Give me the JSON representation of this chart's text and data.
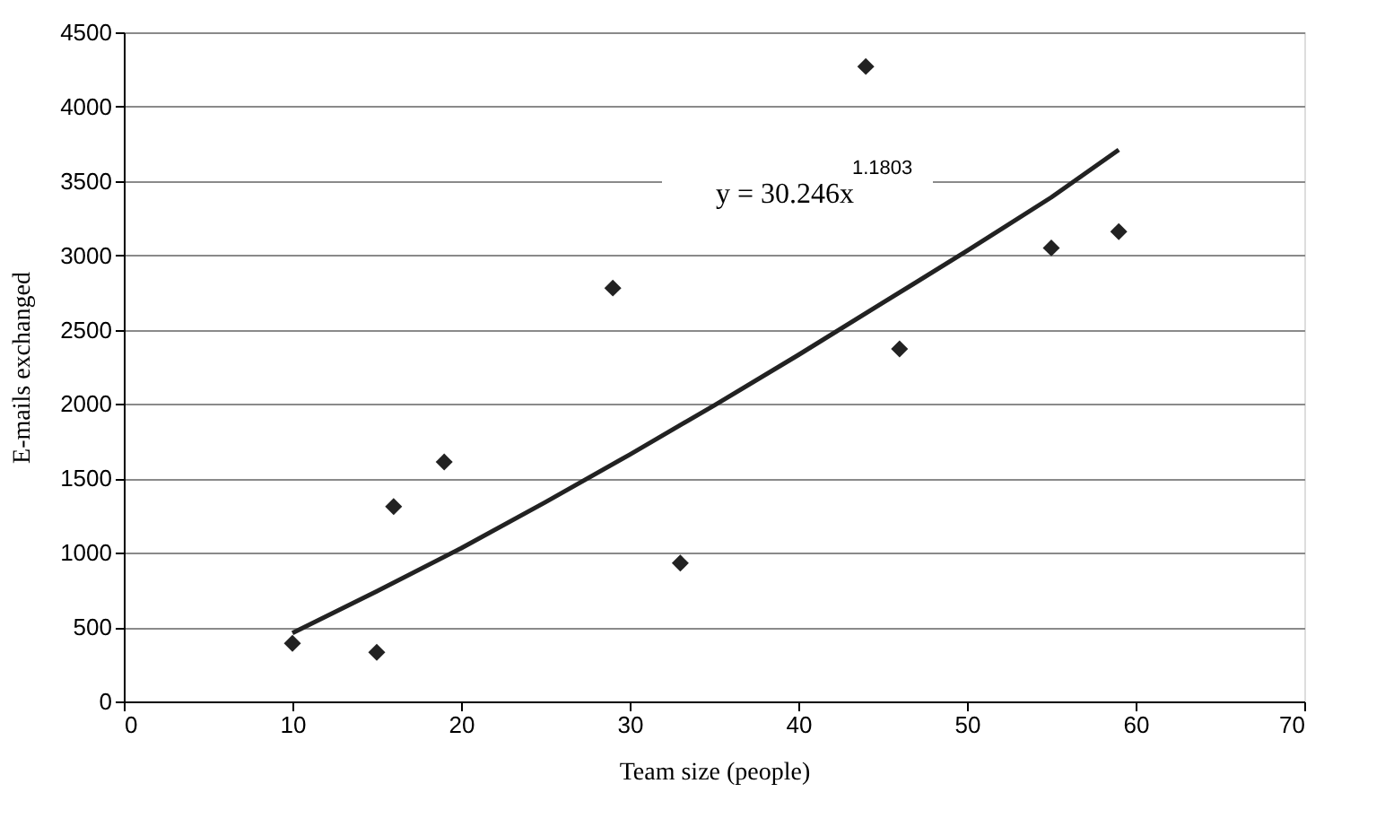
{
  "chart_data": {
    "type": "scatter",
    "xlabel": "Team size (people)",
    "ylabel": "E-mails exchanged",
    "x": [
      10,
      15,
      16,
      19,
      29,
      33,
      44,
      46,
      55,
      59
    ],
    "series": [
      {
        "color": "#222222",
        "marker": "diamond",
        "values": [
          390,
          330,
          1310,
          1610,
          2780,
          930,
          4270,
          2370,
          3050,
          3160
        ]
      },
      {
        "type": "line",
        "color": "#222222",
        "line_style": "solid",
        "x": [
          10,
          15,
          20,
          25,
          30,
          35,
          40,
          45,
          50,
          55,
          59
        ],
        "values": [
          460,
          740,
          1030,
          1340,
          1660,
          1990,
          2330,
          2680,
          3030,
          3390,
          3710
        ]
      }
    ],
    "annotations": [
      "y = 30.246x$^{1.1803}$"
    ],
    "xlim": [
      0,
      70
    ],
    "xticks": [
      0,
      10,
      20,
      30,
      40,
      50,
      60,
      70
    ],
    "ylim": [
      0,
      4500
    ],
    "yticks": [
      0,
      500,
      1000,
      1500,
      2000,
      2500,
      3000,
      3500,
      4000,
      4500
    ],
    "grid": "y"
  }
}
